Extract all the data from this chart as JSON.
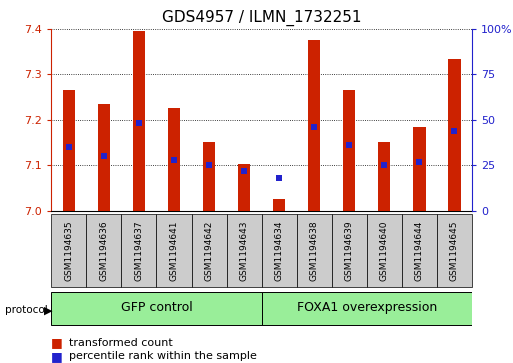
{
  "title": "GDS4957 / ILMN_1732251",
  "samples": [
    "GSM1194635",
    "GSM1194636",
    "GSM1194637",
    "GSM1194641",
    "GSM1194642",
    "GSM1194643",
    "GSM1194634",
    "GSM1194638",
    "GSM1194639",
    "GSM1194640",
    "GSM1194644",
    "GSM1194645"
  ],
  "transformed_count": [
    7.265,
    7.235,
    7.395,
    7.225,
    7.15,
    7.102,
    7.025,
    7.375,
    7.265,
    7.15,
    7.185,
    7.335
  ],
  "percentile_rank": [
    35,
    30,
    48,
    28,
    25,
    22,
    18,
    46,
    36,
    25,
    27,
    44
  ],
  "ylim": [
    7.0,
    7.4
  ],
  "yticks": [
    7.0,
    7.1,
    7.2,
    7.3,
    7.4
  ],
  "right_yticks": [
    0,
    25,
    50,
    75,
    100
  ],
  "right_yticklabels": [
    "0",
    "25",
    "50",
    "75",
    "100%"
  ],
  "bar_color": "#cc2200",
  "dot_color": "#2222cc",
  "gfp_label": "GFP control",
  "foxa1_label": "FOXA1 overexpression",
  "group_bg": "#99ee99",
  "sample_box_bg": "#cccccc",
  "label_color_red": "#cc2200",
  "label_color_blue": "#2222cc",
  "bar_width": 0.35,
  "title_fontsize": 11,
  "tick_fontsize": 8,
  "group_label_fontsize": 9,
  "legend_fontsize": 8,
  "sample_fontsize": 6.5
}
